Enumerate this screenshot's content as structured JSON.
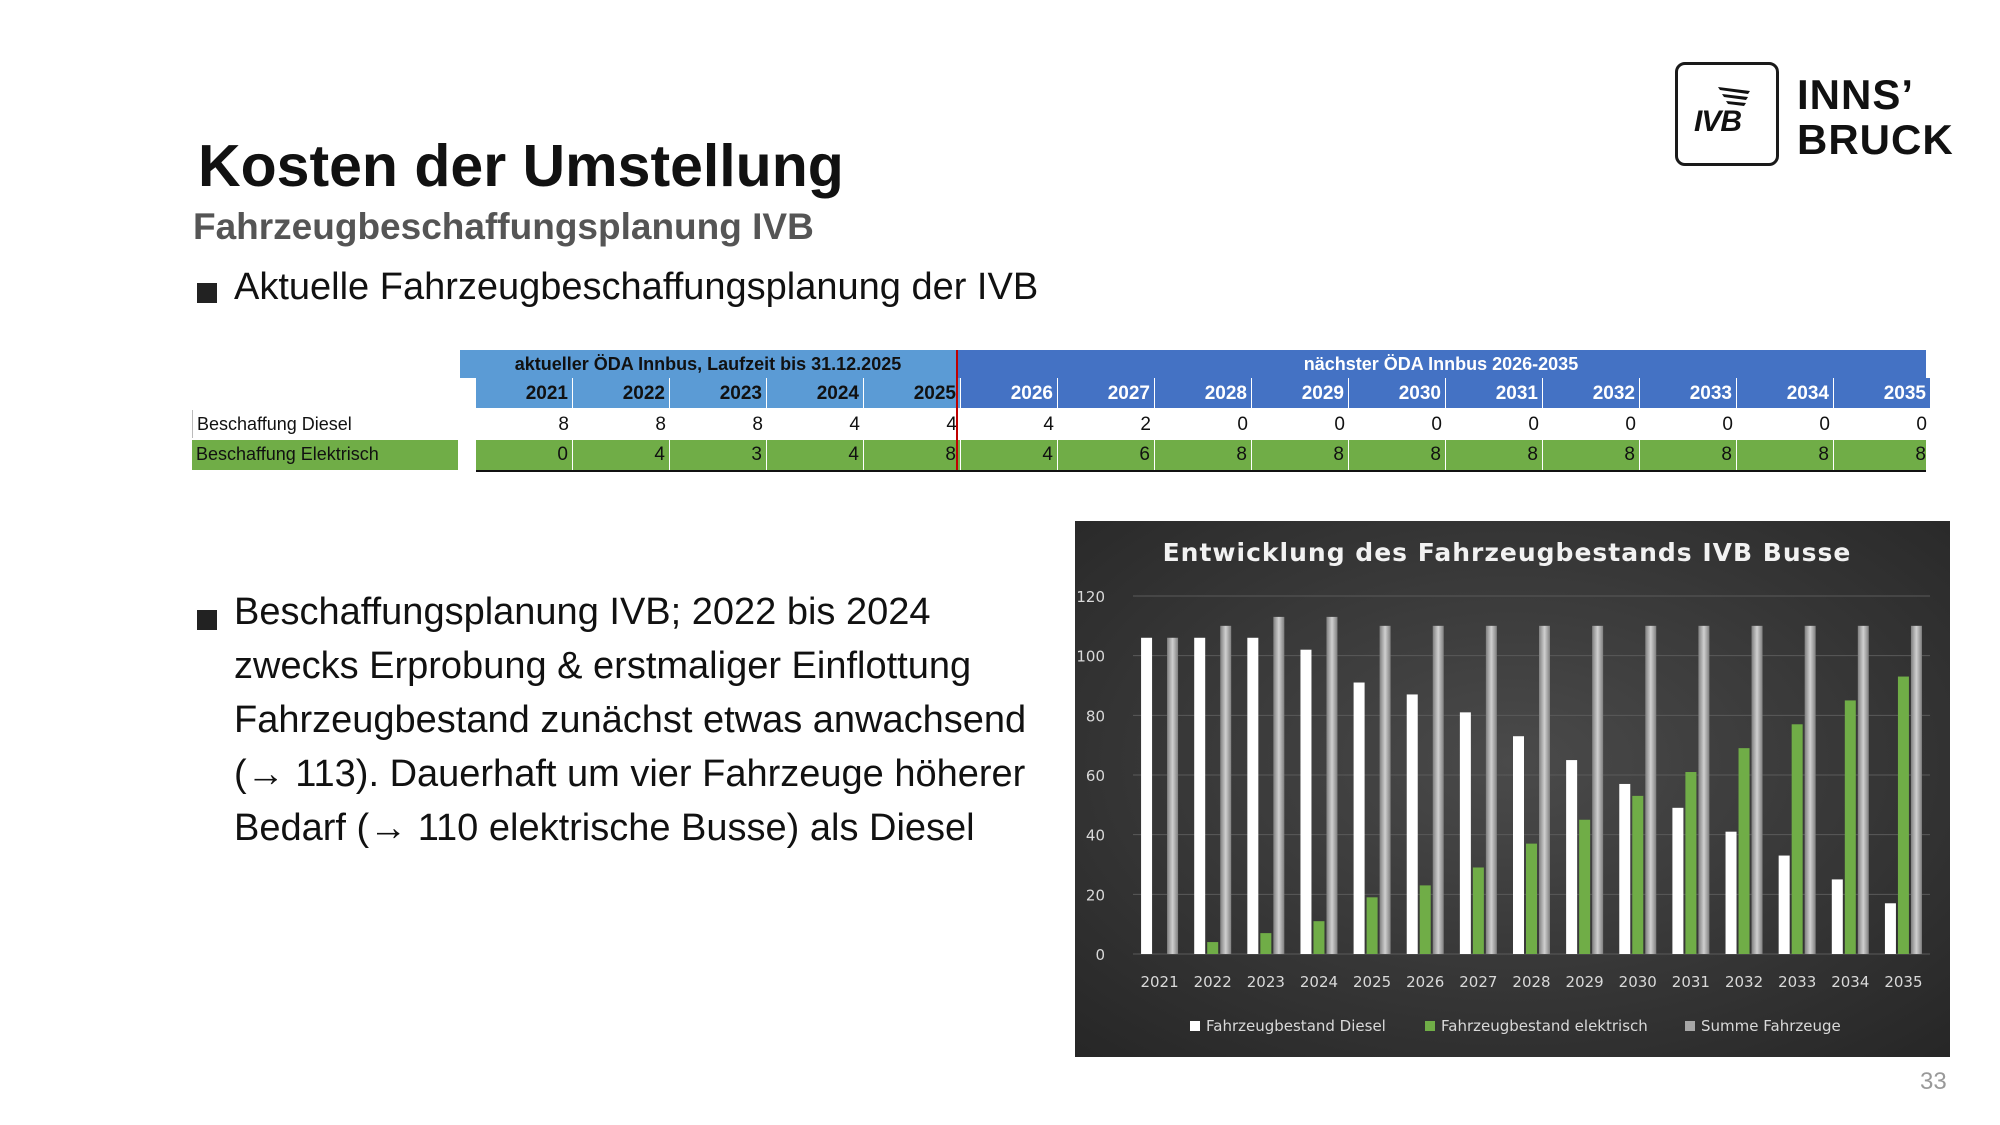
{
  "title": "Kosten der Umstellung",
  "subtitle": "Fahrzeugbeschaffungsplanung IVB",
  "bullet_1": "Aktuelle Fahrzeugbeschaffungsplanung der IVB",
  "bullet_2_lines": [
    "Beschaffungsplanung IVB; 2022 bis 2024",
    "zwecks Erprobung & erstmaliger Einflottung",
    "Fahrzeugbestand zunächst etwas anwachsend",
    "(→ 113). Dauerhaft um vier Fahrzeuge höherer",
    "Bedarf (→ 110 elektrische Busse) als Diesel"
  ],
  "logo": {
    "mark": "IVB",
    "word_1": "INNS’",
    "word_2": "BRUCK"
  },
  "table": {
    "header_current": "aktueller ÖDA Innbus, Laufzeit bis 31.12.2025",
    "header_next": "nächster ÖDA Innbus 2026-2035",
    "years": [
      "2021",
      "2022",
      "2023",
      "2024",
      "2025",
      "2026",
      "2027",
      "2028",
      "2029",
      "2030",
      "2031",
      "2032",
      "2033",
      "2034",
      "2035"
    ],
    "row_diesel_label": "Beschaffung Diesel",
    "row_elektro_label": "Beschaffung Elektrisch",
    "diesel": [
      8,
      8,
      8,
      4,
      4,
      4,
      2,
      0,
      0,
      0,
      0,
      0,
      0,
      0,
      0
    ],
    "elektro": [
      0,
      4,
      3,
      4,
      8,
      4,
      6,
      8,
      8,
      8,
      8,
      8,
      8,
      8,
      8
    ]
  },
  "chart_data": {
    "type": "bar",
    "title": "Entwicklung des Fahrzeugbestands IVB Busse",
    "categories": [
      "2021",
      "2022",
      "2023",
      "2024",
      "2025",
      "2026",
      "2027",
      "2028",
      "2029",
      "2030",
      "2031",
      "2032",
      "2033",
      "2034",
      "2035"
    ],
    "series": [
      {
        "name": "Fahrzeugbestand Diesel",
        "color": "#ffffff",
        "values": [
          106,
          106,
          106,
          102,
          91,
          87,
          81,
          73,
          65,
          57,
          49,
          41,
          33,
          25,
          17
        ]
      },
      {
        "name": "Fahrzeugbestand elektrisch",
        "color": "#70ad47",
        "values": [
          0,
          4,
          7,
          11,
          19,
          23,
          29,
          37,
          45,
          53,
          61,
          69,
          77,
          85,
          93
        ]
      },
      {
        "name": "Summe Fahrzeuge",
        "color": "#a6a6a6",
        "values": [
          106,
          110,
          113,
          113,
          110,
          110,
          110,
          110,
          110,
          110,
          110,
          110,
          110,
          110,
          110
        ]
      }
    ],
    "ylim": [
      0,
      120
    ],
    "yticks": [
      "0",
      "20",
      "40",
      "60",
      "80",
      "100",
      "120"
    ],
    "legend_position": "bottom",
    "grid": true
  },
  "page_number": "33"
}
